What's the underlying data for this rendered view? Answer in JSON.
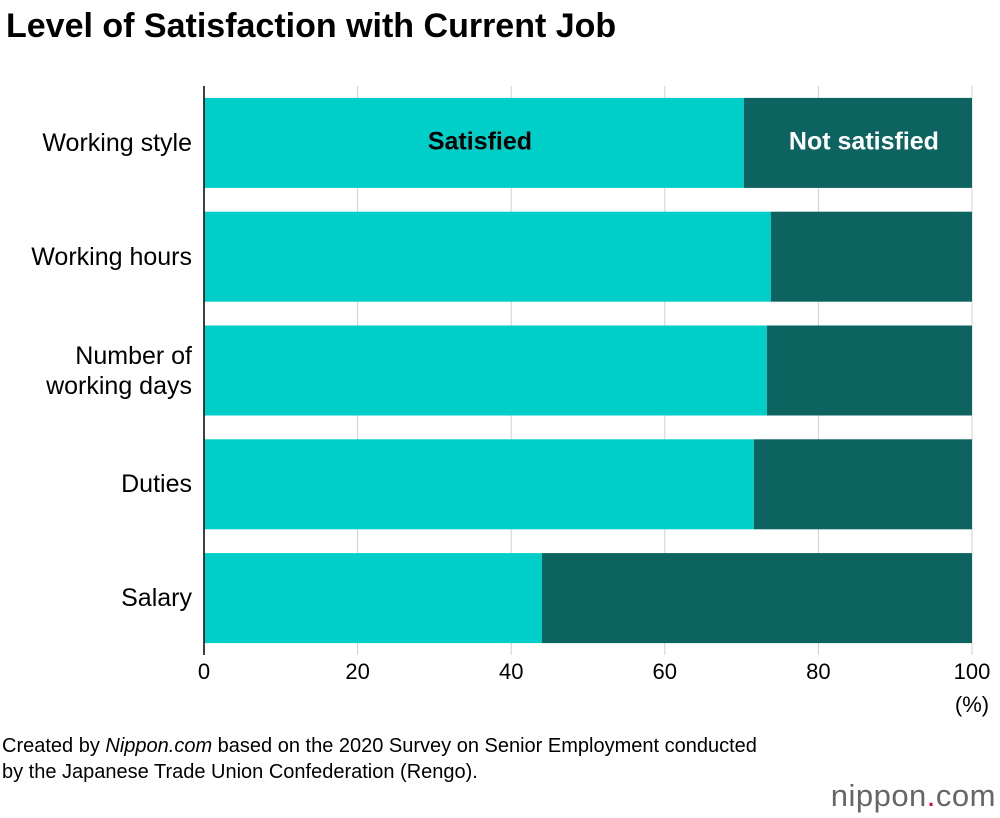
{
  "chart_data": {
    "type": "stacked-bar-horizontal",
    "title": "Level of Satisfaction with Current Job",
    "categories": [
      "Working style",
      "Working hours",
      "Number of\nworking days",
      "Duties",
      "Salary"
    ],
    "series": [
      {
        "name": "Satisfied",
        "color": "#00cec8",
        "label_color": "#000000",
        "values": [
          70.3,
          73.8,
          73.3,
          71.6,
          44.0
        ]
      },
      {
        "name": "Not satisfied",
        "color": "#0d6360",
        "label_color": "#ffffff",
        "values": [
          29.7,
          26.2,
          26.7,
          28.4,
          56.0
        ]
      }
    ],
    "xlim": [
      0,
      100
    ],
    "xticks": [
      0,
      20,
      40,
      60,
      80,
      100
    ],
    "x_unit": "(%)",
    "grid": true,
    "source": {
      "prefix": "Created by ",
      "emphasis": "Nippon.com",
      "suffix": " based on the 2020 Survey on Senior Employment conducted by the Japanese Trade Union Confederation (Rengo)."
    },
    "logo": [
      "nippon",
      ".",
      "com"
    ]
  }
}
